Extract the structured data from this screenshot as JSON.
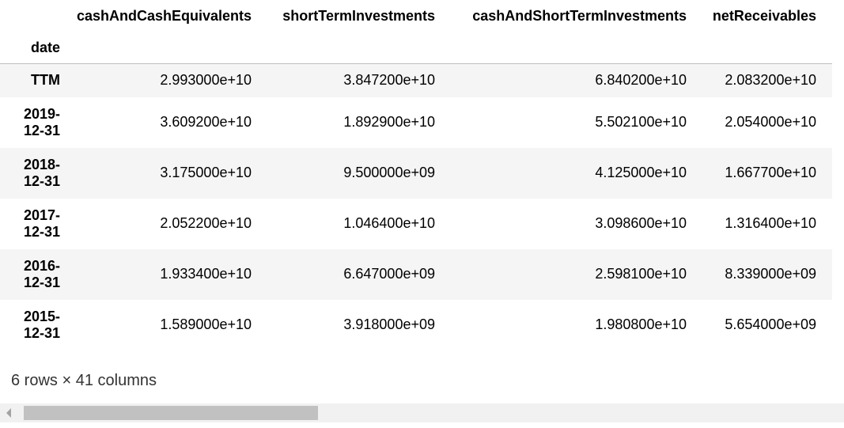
{
  "table": {
    "columns": [
      "cashAndCashEquivalents",
      "shortTermInvestments",
      "cashAndShortTermInvestments",
      "netReceivables"
    ],
    "index_name": "date",
    "rows": [
      {
        "index": "TTM",
        "values": [
          "2.993000e+10",
          "3.847200e+10",
          "6.840200e+10",
          "2.083200e+10"
        ]
      },
      {
        "index": "2019-12-31",
        "values": [
          "3.609200e+10",
          "1.892900e+10",
          "5.502100e+10",
          "2.054000e+10"
        ]
      },
      {
        "index": "2018-12-31",
        "values": [
          "3.175000e+10",
          "9.500000e+09",
          "4.125000e+10",
          "1.667700e+10"
        ]
      },
      {
        "index": "2017-12-31",
        "values": [
          "2.052200e+10",
          "1.046400e+10",
          "3.098600e+10",
          "1.316400e+10"
        ]
      },
      {
        "index": "2016-12-31",
        "values": [
          "1.933400e+10",
          "6.647000e+09",
          "2.598100e+10",
          "8.339000e+09"
        ]
      },
      {
        "index": "2015-12-31",
        "values": [
          "1.589000e+10",
          "3.918000e+09",
          "1.980800e+10",
          "5.654000e+09"
        ]
      }
    ]
  },
  "shape_text": "6 rows × 41 columns",
  "scrollbar": {
    "position_fraction": 0.0,
    "thumb_fraction": 0.35
  }
}
